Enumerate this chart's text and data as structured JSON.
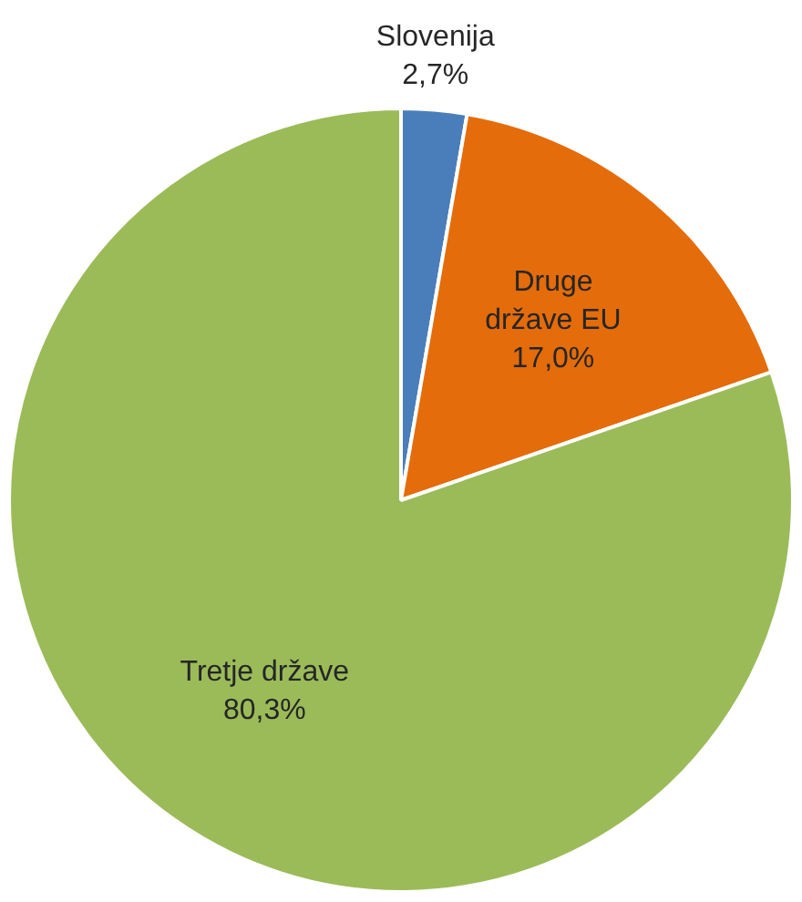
{
  "chart_data": {
    "type": "pie",
    "categories": [
      "Slovenija",
      "Druge države EU",
      "Tretje države"
    ],
    "values": [
      2.7,
      17.0,
      80.3
    ],
    "value_labels": [
      "2,7%",
      "17,0%",
      "80,3%"
    ],
    "colors": [
      "#4a7ebb",
      "#e46c0a",
      "#9bbb59"
    ],
    "legend": false
  }
}
